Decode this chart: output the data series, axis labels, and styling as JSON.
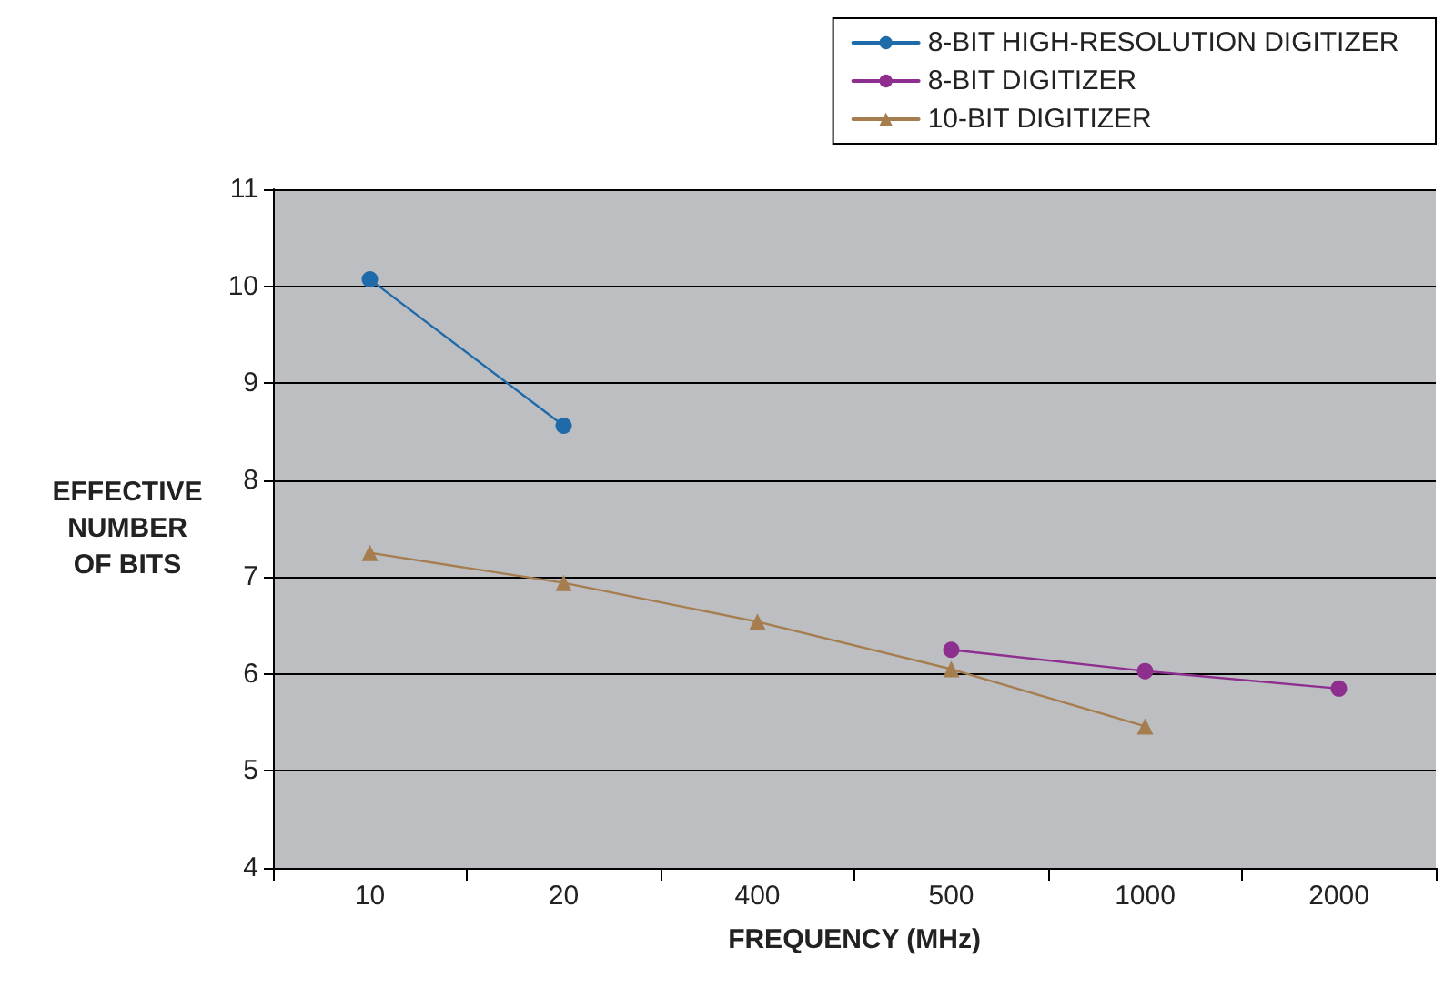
{
  "chart_data": {
    "type": "line",
    "xlabel": "FREQUENCY (MHz)",
    "ylabel": "EFFECTIVE\nNUMBER\nOF BITS",
    "categories": [
      "10",
      "20",
      "400",
      "500",
      "1000",
      "2000"
    ],
    "series": [
      {
        "name": "8-BIT HIGH-RESOLUTION DIGITIZER",
        "color": "#1f6aa8",
        "marker": "circle",
        "values": [
          10.07,
          8.56,
          null,
          null,
          null,
          null
        ]
      },
      {
        "name": "8-BIT DIGITIZER",
        "color": "#8e2e8e",
        "marker": "circle",
        "values": [
          null,
          null,
          null,
          6.25,
          6.03,
          5.85
        ]
      },
      {
        "name": "10-BIT DIGITIZER",
        "color": "#a57d4e",
        "marker": "triangle",
        "values": [
          7.25,
          6.94,
          6.54,
          6.05,
          5.46,
          null
        ]
      }
    ],
    "ylim": [
      4,
      11
    ],
    "yticks": [
      4,
      5,
      6,
      7,
      8,
      9,
      10,
      11
    ],
    "grid": "y",
    "legend": "top right"
  }
}
